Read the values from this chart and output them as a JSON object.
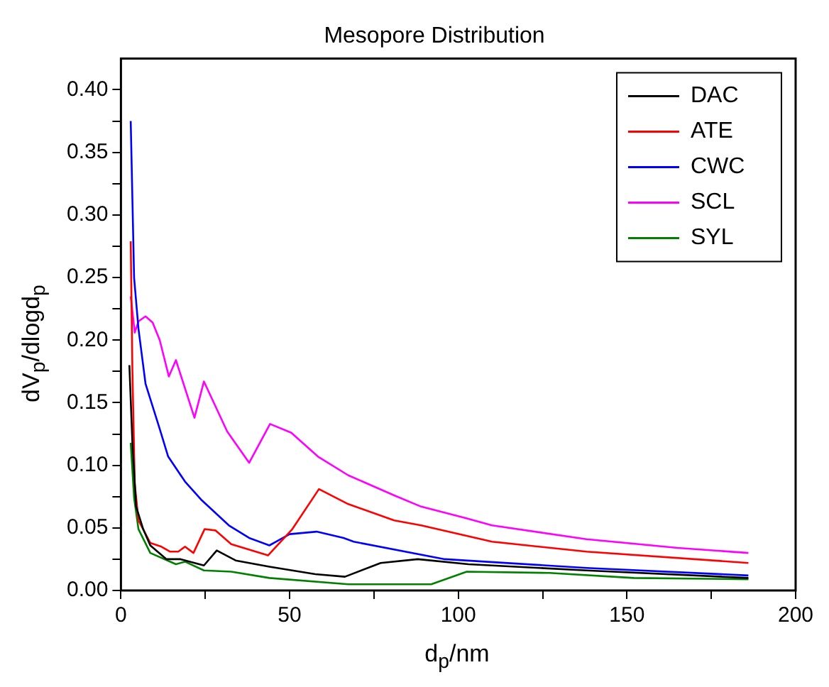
{
  "chart_data": {
    "type": "line",
    "title": "Mesopore Distribution",
    "xlabel": "d$_{p}$/nm",
    "ylabel": "dV$_{p}$/dlogd$_{p}$",
    "xlim": [
      0,
      200
    ],
    "xticks": [
      0,
      {
        "value": 25,
        "label": null
      },
      50,
      {
        "value": 75,
        "label": null
      },
      100,
      {
        "value": 125,
        "label": null
      },
      150,
      {
        "value": 175,
        "label": null
      },
      200
    ],
    "ylim": [
      0,
      0.425
    ],
    "yticks": [
      {
        "value": 0,
        "label": "0.00"
      },
      {
        "value": 0.025,
        "label": null
      },
      {
        "value": 0.05,
        "label": "0.05"
      },
      {
        "value": 0.075,
        "label": null
      },
      {
        "value": 0.1,
        "label": "0.10"
      },
      {
        "value": 0.125,
        "label": null
      },
      {
        "value": 0.15,
        "label": "0.15"
      },
      {
        "value": 0.175,
        "label": null
      },
      {
        "value": 0.2,
        "label": "0.20"
      },
      {
        "value": 0.225,
        "label": null
      },
      {
        "value": 0.25,
        "label": "0.25"
      },
      {
        "value": 0.275,
        "label": null
      },
      {
        "value": 0.3,
        "label": "0.30"
      },
      {
        "value": 0.325,
        "label": null
      },
      {
        "value": 0.35,
        "label": "0.35"
      },
      {
        "value": 0.375,
        "label": null
      },
      {
        "value": 0.4,
        "label": "0.40"
      }
    ],
    "grid": false,
    "legend": "top right",
    "marker": "none",
    "line_style": "solid",
    "series": [
      {
        "name": "DAC",
        "color": "#000000",
        "x": [
          2.5,
          3.4,
          4.5,
          6.6,
          8.7,
          13.5,
          17.7,
          24.6,
          28.4,
          34,
          44,
          57.6,
          66.4,
          77,
          88,
          103,
          138,
          186
        ],
        "values": [
          0.18,
          0.118,
          0.067,
          0.049,
          0.036,
          0.025,
          0.025,
          0.02,
          0.032,
          0.024,
          0.019,
          0.013,
          0.011,
          0.022,
          0.025,
          0.021,
          0.016,
          0.01
        ]
      },
      {
        "name": "ATE",
        "color": "#ff0000",
        "x": [
          2.9,
          3.4,
          4.1,
          5.2,
          8.7,
          12,
          14.6,
          17,
          19,
          21.5,
          24.8,
          28,
          32.7,
          43.6,
          50.8,
          58.7,
          67.4,
          81,
          89,
          110,
          138,
          186
        ],
        "values": [
          0.279,
          0.176,
          0.085,
          0.056,
          0.038,
          0.035,
          0.031,
          0.031,
          0.035,
          0.03,
          0.049,
          0.048,
          0.037,
          0.028,
          0.049,
          0.081,
          0.069,
          0.056,
          0.052,
          0.039,
          0.031,
          0.022
        ]
      },
      {
        "name": "CWC",
        "color": "#0000ff",
        "x": [
          2.9,
          3.9,
          5.2,
          7.3,
          11.5,
          14,
          19,
          24,
          32,
          38,
          44,
          50,
          58,
          66,
          69,
          96,
          138,
          186
        ],
        "values": [
          0.375,
          0.25,
          0.209,
          0.165,
          0.129,
          0.107,
          0.087,
          0.072,
          0.052,
          0.042,
          0.036,
          0.045,
          0.047,
          0.042,
          0.039,
          0.025,
          0.018,
          0.012
        ]
      },
      {
        "name": "SCL",
        "color": "#ff00ff",
        "x": [
          2.9,
          4.1,
          5.2,
          7.3,
          9.4,
          11.5,
          14.2,
          16.3,
          21.8,
          24.6,
          31.5,
          38,
          44.2,
          50.5,
          58.4,
          67.4,
          81,
          89,
          102,
          110,
          138,
          165,
          186
        ],
        "values": [
          0.235,
          0.206,
          0.215,
          0.219,
          0.214,
          0.2,
          0.171,
          0.184,
          0.138,
          0.167,
          0.127,
          0.102,
          0.133,
          0.126,
          0.107,
          0.092,
          0.076,
          0.067,
          0.058,
          0.052,
          0.041,
          0.034,
          0.03
        ]
      },
      {
        "name": "SYL",
        "color": "#008000",
        "x": [
          2.9,
          3.9,
          5.2,
          8.7,
          16.3,
          19,
          24.6,
          32.7,
          44,
          67.4,
          92,
          102.5,
          127,
          152,
          186
        ],
        "values": [
          0.118,
          0.074,
          0.049,
          0.03,
          0.021,
          0.023,
          0.016,
          0.015,
          0.01,
          0.005,
          0.005,
          0.015,
          0.014,
          0.01,
          0.009
        ]
      }
    ]
  }
}
